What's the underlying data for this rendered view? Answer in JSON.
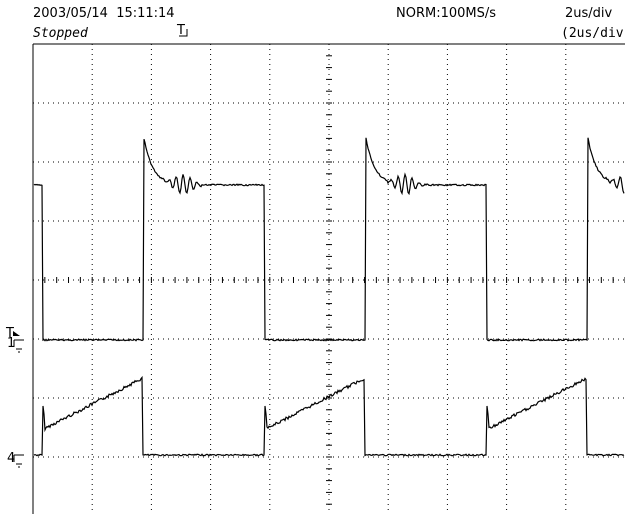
{
  "header": {
    "datetime": "2003/05/14  15:11:14",
    "status": "Stopped",
    "trigger_marker": "T",
    "mode": "NORM:100MS/s",
    "timebase": "2us/div",
    "timebase_zoom": "(2us/div)"
  },
  "markers": {
    "trigger_level": "T",
    "channel_1": "1",
    "channel_4": "4"
  }
}
